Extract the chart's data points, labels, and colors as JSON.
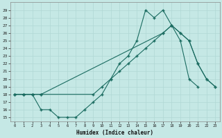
{
  "xlabel": "Humidex (Indice chaleur)",
  "bg_color": "#c5e8e5",
  "line_color": "#1a6b60",
  "grid_color": "#b0d8d4",
  "xlim": [
    -0.5,
    23.5
  ],
  "ylim": [
    14.5,
    30.0
  ],
  "xticks": [
    0,
    1,
    2,
    3,
    4,
    5,
    6,
    7,
    8,
    9,
    10,
    11,
    12,
    13,
    14,
    15,
    16,
    17,
    18,
    19,
    20,
    21,
    22,
    23
  ],
  "yticks": [
    15,
    16,
    17,
    18,
    19,
    20,
    21,
    22,
    23,
    24,
    25,
    26,
    27,
    28,
    29
  ],
  "line1_x": [
    0,
    1,
    2,
    3,
    4,
    5,
    6,
    7,
    8,
    9,
    10,
    11,
    12,
    13,
    14,
    15,
    16,
    17,
    18,
    19,
    20,
    21
  ],
  "line1_y": [
    18,
    18,
    18,
    16,
    16,
    15,
    15,
    15,
    16,
    17,
    18,
    20,
    22,
    23,
    25,
    29,
    28,
    29,
    27,
    25,
    20,
    19
  ],
  "line2_x": [
    0,
    1,
    2,
    3,
    9,
    10,
    11,
    12,
    13,
    14,
    15,
    16,
    17,
    18,
    19,
    20,
    21,
    22,
    23
  ],
  "line2_y": [
    18,
    18,
    18,
    18,
    18,
    19,
    20,
    21,
    22,
    23,
    24,
    25,
    26,
    27,
    26,
    25,
    22,
    20,
    19
  ],
  "line3_x": [
    0,
    1,
    2,
    3,
    17,
    18,
    19,
    20,
    21,
    22,
    23
  ],
  "line3_y": [
    18,
    18,
    18,
    18,
    26,
    27,
    26,
    25,
    22,
    20,
    19
  ]
}
